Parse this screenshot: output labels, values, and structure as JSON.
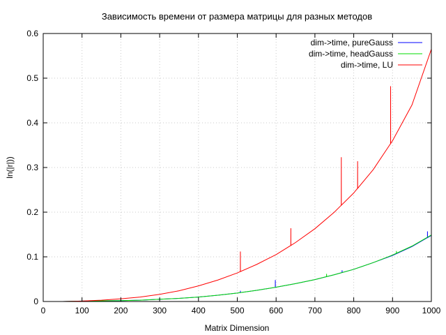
{
  "chart_data": {
    "type": "line",
    "title": "Зависимость времени от размера матрицы для разных методов",
    "xlabel": "Matrix Dimension",
    "ylabel": "ln(|r|))",
    "xlim": [
      0,
      1000
    ],
    "ylim": [
      0,
      0.6
    ],
    "xticks": [
      0,
      100,
      200,
      300,
      400,
      500,
      600,
      700,
      800,
      900,
      1000
    ],
    "yticks": [
      0,
      0.1,
      0.2,
      0.3,
      0.4,
      0.5,
      0.6
    ],
    "grid": true,
    "legend_position": "top-right",
    "x": [
      0,
      50,
      100,
      150,
      200,
      250,
      300,
      350,
      400,
      450,
      500,
      550,
      600,
      650,
      700,
      750,
      800,
      850,
      900,
      950,
      1000
    ],
    "series": [
      {
        "name": "dim->time, pureGauss",
        "color": "#0000ff",
        "values": [
          0,
          0,
          0.001,
          0.0015,
          0.002,
          0.003,
          0.005,
          0.007,
          0.01,
          0.014,
          0.019,
          0.025,
          0.032,
          0.04,
          0.049,
          0.06,
          0.072,
          0.087,
          0.103,
          0.123,
          0.148
        ],
        "spikes": [
          {
            "x": 508,
            "y": 0.024
          },
          {
            "x": 598,
            "y": 0.048
          },
          {
            "x": 770,
            "y": 0.07
          },
          {
            "x": 990,
            "y": 0.157
          }
        ]
      },
      {
        "name": "dim->time, headGauss",
        "color": "#00dd00",
        "values": [
          0,
          0,
          0.001,
          0.0015,
          0.002,
          0.003,
          0.005,
          0.007,
          0.01,
          0.014,
          0.019,
          0.025,
          0.032,
          0.04,
          0.049,
          0.06,
          0.072,
          0.087,
          0.104,
          0.124,
          0.149
        ],
        "spikes": [
          {
            "x": 730,
            "y": 0.062
          },
          {
            "x": 910,
            "y": 0.113
          }
        ]
      },
      {
        "name": "dim->time, LU",
        "color": "#ff0000",
        "values": [
          0,
          0,
          0.001,
          0.003,
          0.006,
          0.01,
          0.016,
          0.024,
          0.035,
          0.048,
          0.064,
          0.083,
          0.105,
          0.132,
          0.163,
          0.2,
          0.243,
          0.295,
          0.36,
          0.44,
          0.565
        ],
        "spikes": [
          {
            "x": 508,
            "y": 0.112
          },
          {
            "x": 638,
            "y": 0.164
          },
          {
            "x": 768,
            "y": 0.323
          },
          {
            "x": 810,
            "y": 0.314
          },
          {
            "x": 895,
            "y": 0.482
          }
        ]
      }
    ]
  }
}
